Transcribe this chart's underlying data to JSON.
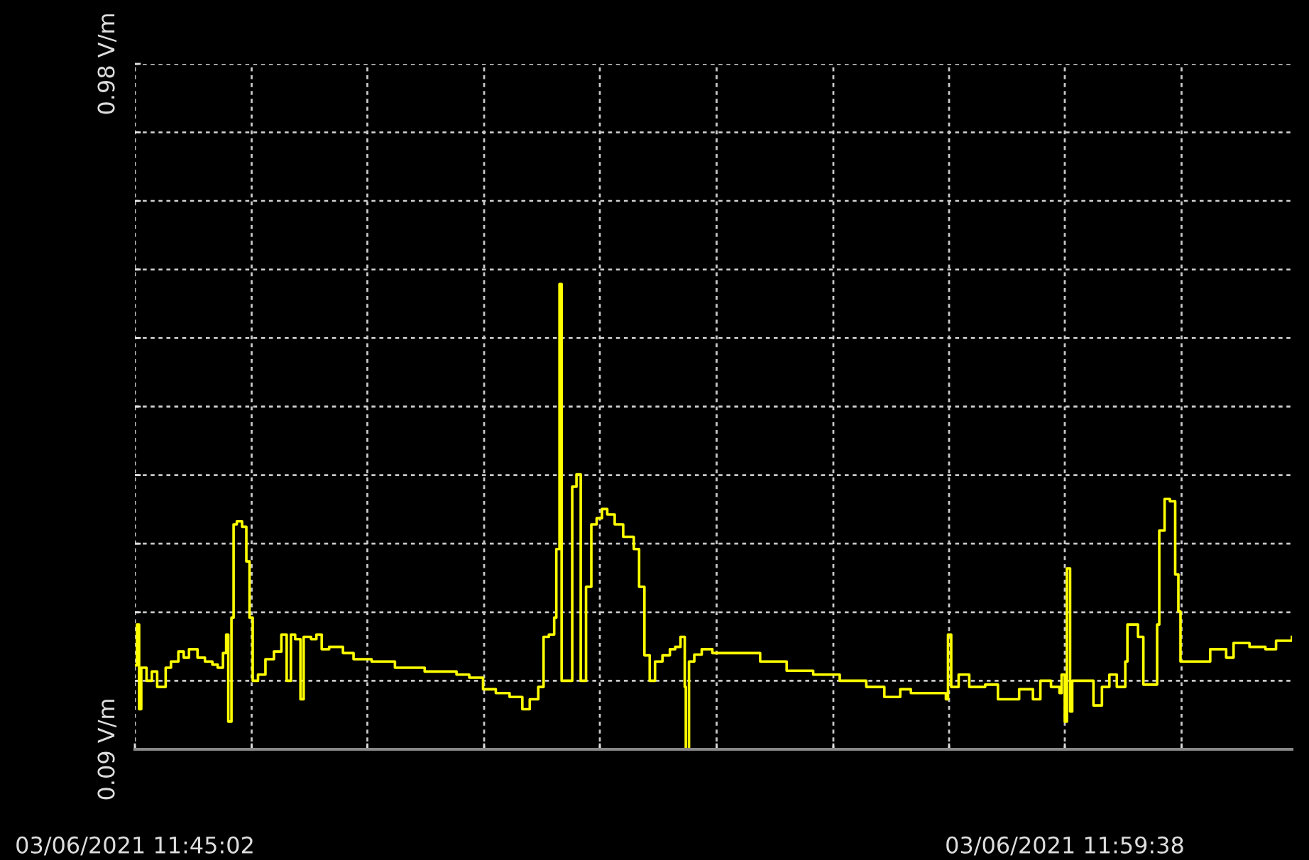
{
  "chart_data": {
    "type": "step",
    "color": "#ffff00",
    "grid": true,
    "x": [
      "2021-03-06T11:45:02",
      "2021-03-06T11:45:04",
      "2021-03-06T11:45:06",
      "2021-03-06T11:45:08",
      "2021-03-06T11:45:13",
      "2021-03-06T11:45:18",
      "2021-03-06T11:45:23",
      "2021-03-06T11:45:31",
      "2021-03-06T11:45:36",
      "2021-03-06T11:45:43",
      "2021-03-06T11:45:48",
      "2021-03-06T11:45:53",
      "2021-03-06T11:46:01",
      "2021-03-06T11:46:08",
      "2021-03-06T11:46:15",
      "2021-03-06T11:46:20",
      "2021-03-06T11:46:25",
      "2021-03-06T11:46:28",
      "2021-03-06T11:46:30",
      "2021-03-06T11:46:33",
      "2021-03-06T11:46:35",
      "2021-03-06T11:46:38",
      "2021-03-06T11:46:43",
      "2021-03-06T11:46:47",
      "2021-03-06T11:46:50",
      "2021-03-06T11:46:53",
      "2021-03-06T11:46:58",
      "2021-03-06T11:47:05",
      "2021-03-06T11:47:13",
      "2021-03-06T11:47:20",
      "2021-03-06T11:47:25",
      "2021-03-06T11:47:29",
      "2021-03-06T11:47:33",
      "2021-03-06T11:47:38",
      "2021-03-06T11:47:41",
      "2021-03-06T11:47:48",
      "2021-03-06T11:47:53",
      "2021-03-06T11:47:58",
      "2021-03-06T11:48:05",
      "2021-03-06T11:48:18",
      "2021-03-06T11:48:28",
      "2021-03-06T11:48:45",
      "2021-03-06T11:49:07",
      "2021-03-06T11:49:35",
      "2021-03-06T11:50:05",
      "2021-03-06T11:50:17",
      "2021-03-06T11:50:30",
      "2021-03-06T11:50:42",
      "2021-03-06T11:50:55",
      "2021-03-06T11:51:07",
      "2021-03-06T11:51:14",
      "2021-03-06T11:51:22",
      "2021-03-06T11:51:27",
      "2021-03-06T11:51:32",
      "2021-03-06T11:51:37",
      "2021-03-06T11:51:39",
      "2021-03-06T11:51:42",
      "2021-03-06T11:51:44",
      "2021-03-06T11:51:49",
      "2021-03-06T11:51:54",
      "2021-03-06T11:51:58",
      "2021-03-06T11:52:02",
      "2021-03-06T11:52:07",
      "2021-03-06T11:52:12",
      "2021-03-06T11:52:17",
      "2021-03-06T11:52:22",
      "2021-03-06T11:52:27",
      "2021-03-06T11:52:34",
      "2021-03-06T11:52:42",
      "2021-03-06T11:52:52",
      "2021-03-06T11:52:57",
      "2021-03-06T11:53:02",
      "2021-03-06T11:53:07",
      "2021-03-06T11:53:12",
      "2021-03-06T11:53:19",
      "2021-03-06T11:53:26",
      "2021-03-06T11:53:31",
      "2021-03-06T11:53:36",
      "2021-03-06T11:53:40",
      "2021-03-06T11:53:41",
      "2021-03-06T11:53:44",
      "2021-03-06T11:53:49",
      "2021-03-06T11:53:56",
      "2021-03-06T11:54:06",
      "2021-03-06T11:54:26",
      "2021-03-06T11:54:51",
      "2021-03-06T11:55:16",
      "2021-03-06T11:55:41",
      "2021-03-06T11:56:06",
      "2021-03-06T11:56:31",
      "2021-03-06T11:56:48",
      "2021-03-06T11:57:03",
      "2021-03-06T11:57:13",
      "2021-03-06T11:57:33",
      "2021-03-06T11:57:46",
      "2021-03-06T11:57:48",
      "2021-03-06T11:57:51",
      "2021-03-06T11:57:58",
      "2021-03-06T11:58:08",
      "2021-03-06T11:58:23",
      "2021-03-06T11:58:35",
      "2021-03-06T11:58:55",
      "2021-03-06T11:59:08",
      "2021-03-06T11:59:15",
      "2021-03-06T11:59:25",
      "2021-03-06T11:59:33",
      "2021-03-06T11:59:35",
      "2021-03-06T11:59:38",
      "2021-03-06T11:59:40",
      "2021-03-06T11:59:43",
      "2021-03-06T11:59:45",
      "2021-03-06T11:59:58",
      "2021-03-06T12:00:05",
      "2021-03-06T12:00:13",
      "2021-03-06T12:00:20",
      "2021-03-06T12:00:27",
      "2021-03-06T12:00:35",
      "2021-03-06T12:00:37",
      "2021-03-06T12:00:47",
      "2021-03-06T12:00:52",
      "2021-03-06T12:01:04",
      "2021-03-06T12:01:05",
      "2021-03-06T12:01:07",
      "2021-03-06T12:01:12",
      "2021-03-06T12:01:17",
      "2021-03-06T12:01:22",
      "2021-03-06T12:01:25",
      "2021-03-06T12:01:27",
      "2021-03-06T12:01:40",
      "2021-03-06T12:01:55",
      "2021-03-06T12:02:10",
      "2021-03-06T12:02:17",
      "2021-03-06T12:02:32",
      "2021-03-06T12:02:47",
      "2021-03-06T12:02:57",
      "2021-03-06T12:03:12"
    ],
    "values": [
      0.199,
      0.252,
      0.142,
      0.196,
      0.179,
      0.191,
      0.171,
      0.196,
      0.204,
      0.217,
      0.209,
      0.22,
      0.209,
      0.204,
      0.2,
      0.196,
      0.215,
      0.239,
      0.126,
      0.261,
      0.382,
      0.386,
      0.379,
      0.334,
      0.261,
      0.179,
      0.187,
      0.207,
      0.217,
      0.239,
      0.179,
      0.239,
      0.233,
      0.155,
      0.236,
      0.233,
      0.239,
      0.22,
      0.223,
      0.215,
      0.207,
      0.204,
      0.196,
      0.191,
      0.187,
      0.183,
      0.168,
      0.163,
      0.158,
      0.142,
      0.155,
      0.171,
      0.236,
      0.239,
      0.261,
      0.35,
      0.694,
      0.179,
      0.179,
      0.431,
      0.447,
      0.179,
      0.301,
      0.382,
      0.39,
      0.402,
      0.395,
      0.382,
      0.366,
      0.35,
      0.301,
      0.212,
      0.179,
      0.204,
      0.212,
      0.22,
      0.223,
      0.236,
      0.171,
      0.09,
      0.204,
      0.213,
      0.22,
      0.215,
      0.215,
      0.204,
      0.192,
      0.187,
      0.179,
      0.171,
      0.158,
      0.168,
      0.163,
      0.163,
      0.155,
      0.239,
      0.171,
      0.187,
      0.171,
      0.174,
      0.155,
      0.168,
      0.155,
      0.179,
      0.171,
      0.163,
      0.187,
      0.126,
      0.325,
      0.139,
      0.179,
      0.179,
      0.147,
      0.171,
      0.187,
      0.171,
      0.204,
      0.252,
      0.236,
      0.174,
      0.174,
      0.252,
      0.374,
      0.415,
      0.412,
      0.317,
      0.269,
      0.204,
      0.204,
      0.22,
      0.209,
      0.228,
      0.223,
      0.22,
      0.231,
      0.236
    ],
    "xlim": [
      "2021-03-06T11:45:02",
      "2021-03-06T12:03:12"
    ],
    "xticks": [
      {
        "value": "2021-03-06T11:45:02",
        "label": "03/06/2021 11:45:02"
      },
      {
        "value": "2021-03-06T11:46:52",
        "label": null
      },
      {
        "value": "2021-03-06T11:48:41",
        "label": null
      },
      {
        "value": "2021-03-06T11:50:31",
        "label": null
      },
      {
        "value": "2021-03-06T11:52:20",
        "label": null
      },
      {
        "value": "2021-03-06T11:54:10",
        "label": null
      },
      {
        "value": "2021-03-06T11:56:00",
        "label": null
      },
      {
        "value": "2021-03-06T11:57:49",
        "label": null
      },
      {
        "value": "2021-03-06T11:59:38",
        "label": "03/06/2021 11:59:38"
      },
      {
        "value": "2021-03-06T12:01:28",
        "label": null
      }
    ],
    "ylim": [
      0.09,
      0.98
    ],
    "yticks": [
      {
        "value": 0.09,
        "label": "0.09 V/m"
      },
      {
        "value": 0.179,
        "label": null
      },
      {
        "value": 0.268,
        "label": null
      },
      {
        "value": 0.357,
        "label": null
      },
      {
        "value": 0.446,
        "label": null
      },
      {
        "value": 0.535,
        "label": null
      },
      {
        "value": 0.624,
        "label": null
      },
      {
        "value": 0.713,
        "label": null
      },
      {
        "value": 0.802,
        "label": null
      },
      {
        "value": 0.891,
        "label": null
      },
      {
        "value": 0.98,
        "label": "0.98 V/m"
      }
    ]
  }
}
